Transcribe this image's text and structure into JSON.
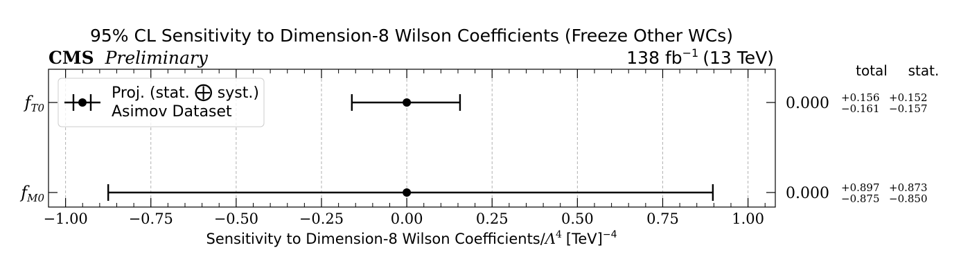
{
  "chart_data": {
    "type": "scatter",
    "title": "95% CL Sensitivity to Dimension-8 Wilson Coefficients (Freeze Other WCs)",
    "experiment": {
      "name": "CMS",
      "status": "Preliminary"
    },
    "lumi_label": "138 fb",
    "lumi_exp": "−1",
    "energy_label": "(13 TeV)",
    "xlabel": "Sensitivity to Dimension-8 Wilson Coefficients/",
    "xlabel_symbol": "Λ",
    "xlabel_symbol_exp": "4",
    "xlabel_unit": "[TeV]",
    "xlabel_unit_exp": "−4",
    "xlim": [
      -1.05,
      1.08
    ],
    "x_ticks": [
      -1.0,
      -0.75,
      -0.5,
      -0.25,
      0.0,
      0.25,
      0.5,
      0.75,
      1.0
    ],
    "x_tick_labels": [
      "−1.00",
      "−0.75",
      "−0.50",
      "−0.25",
      "0.00",
      "0.25",
      "0.50",
      "0.75",
      "1.00"
    ],
    "grid": "vertical dashed",
    "legend": {
      "placement": "top-left",
      "entry_label": "Proj. (stat.",
      "entry_symbol": "⨁",
      "entry_suffix": "syst.)",
      "entry_subtitle": "Asimov Dataset"
    },
    "table_headers": {
      "total": "total",
      "stat": "stat."
    },
    "coefficients": [
      {
        "name_base": "f",
        "name_sub": "T0",
        "value": 0.0,
        "value_label": "0.000",
        "total_up": 0.156,
        "total_down": -0.161,
        "stat_up": 0.152,
        "stat_down": -0.157,
        "total_up_label": "+0.156",
        "total_down_label": "−0.161",
        "stat_up_label": "+0.152",
        "stat_down_label": "−0.157"
      },
      {
        "name_base": "f",
        "name_sub": "M0",
        "value": 0.0,
        "value_label": "0.000",
        "total_up": 0.897,
        "total_down": -0.875,
        "stat_up": 0.873,
        "stat_down": -0.85,
        "total_up_label": "+0.897",
        "total_down_label": "−0.875",
        "stat_up_label": "+0.873",
        "stat_down_label": "−0.850"
      }
    ]
  }
}
